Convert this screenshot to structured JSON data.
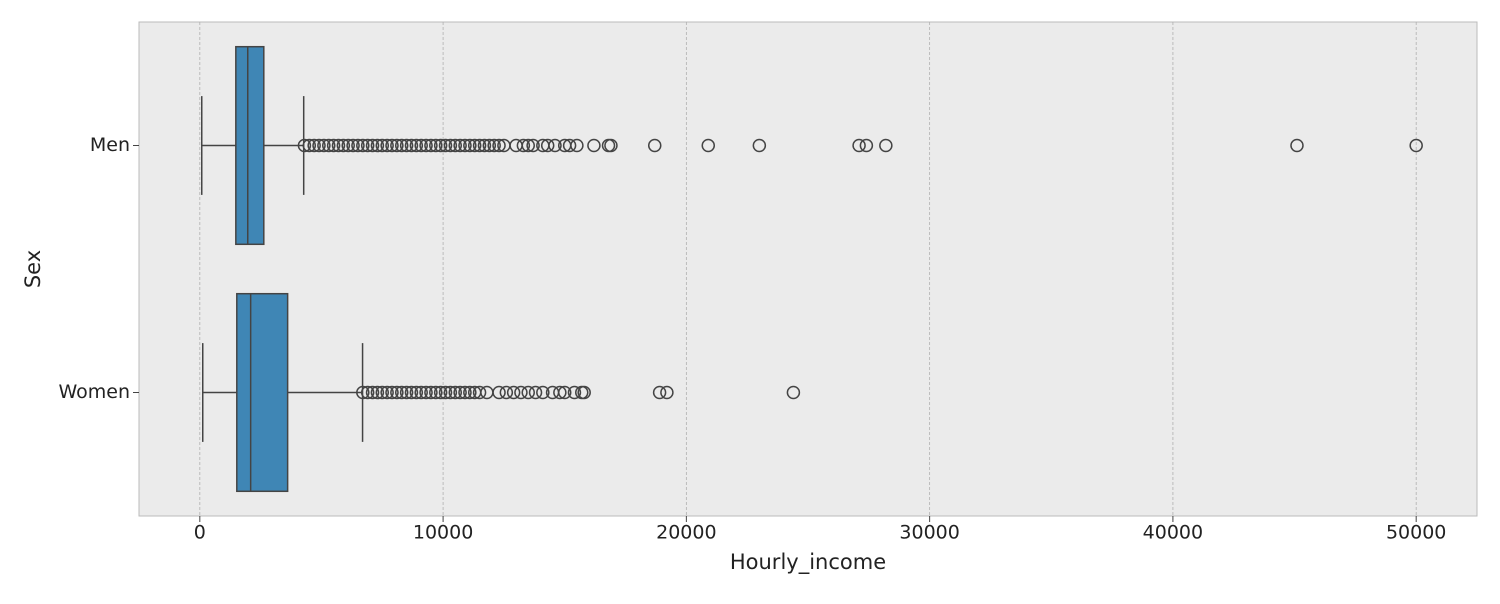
{
  "chart_data": {
    "type": "box",
    "orientation": "horizontal",
    "x_label": "Hourly_income",
    "y_label": "Sex",
    "categories": [
      "Men",
      "Women"
    ],
    "color": "#3f86b5",
    "xlim": [
      -2500,
      52500
    ],
    "xticks": [
      0,
      10000,
      20000,
      30000,
      40000,
      50000
    ],
    "grid": true,
    "boxes": [
      {
        "whislo": 80,
        "q1": 1480,
        "med": 1970,
        "q3": 2630,
        "whishi": 4270,
        "fliers": [
          4300,
          4500,
          4700,
          4900,
          5100,
          5300,
          5500,
          5700,
          5900,
          6100,
          6300,
          6500,
          6700,
          6900,
          7100,
          7300,
          7500,
          7700,
          7900,
          8100,
          8300,
          8500,
          8700,
          8900,
          9100,
          9300,
          9500,
          9700,
          9900,
          10100,
          10300,
          10500,
          10700,
          10900,
          11100,
          11300,
          11500,
          11700,
          11900,
          12100,
          12300,
          12500,
          13000,
          13300,
          13500,
          13700,
          14100,
          14300,
          14600,
          15000,
          15200,
          15500,
          16200,
          16800,
          16900,
          18700,
          20900,
          23000,
          27100,
          27400,
          28200,
          45100,
          50000
        ]
      },
      {
        "whislo": 120,
        "q1": 1520,
        "med": 2090,
        "q3": 3610,
        "whishi": 6690,
        "fliers": [
          6700,
          6900,
          7100,
          7300,
          7500,
          7700,
          7900,
          8100,
          8300,
          8500,
          8700,
          8900,
          9100,
          9300,
          9500,
          9700,
          9900,
          10100,
          10300,
          10500,
          10700,
          10900,
          11100,
          11300,
          11500,
          11800,
          12300,
          12600,
          12900,
          13200,
          13500,
          13800,
          14100,
          14500,
          14800,
          15000,
          15400,
          15700,
          15800,
          18900,
          19200,
          24400
        ]
      }
    ]
  }
}
